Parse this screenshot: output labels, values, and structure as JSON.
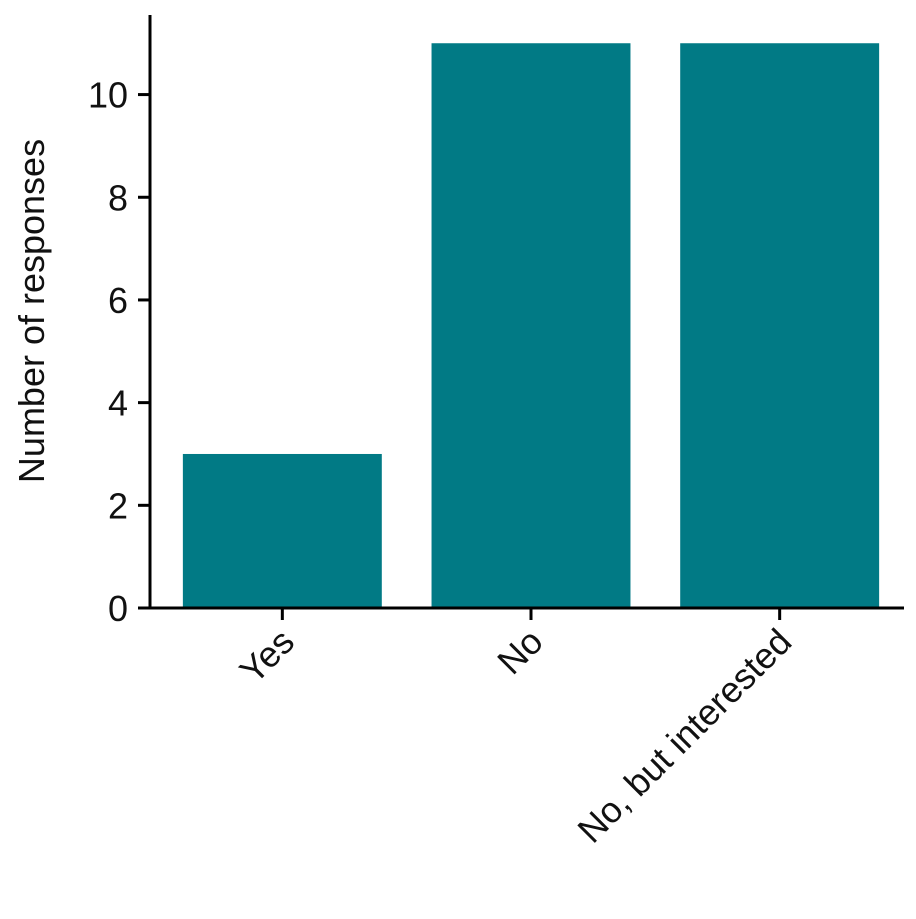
{
  "chart_data": {
    "type": "bar",
    "categories": [
      "Yes",
      "No",
      "No, but interested"
    ],
    "values": [
      3,
      11,
      11
    ],
    "title": "",
    "xlabel": "",
    "ylabel": "Number of responses",
    "ylim": [
      0,
      11.55
    ],
    "yticks": [
      "0",
      "2",
      "4",
      "6",
      "8",
      "10"
    ],
    "ytick_values": [
      0,
      2,
      4,
      6,
      8,
      10
    ],
    "grid": false,
    "bar_color": "#017A85"
  }
}
